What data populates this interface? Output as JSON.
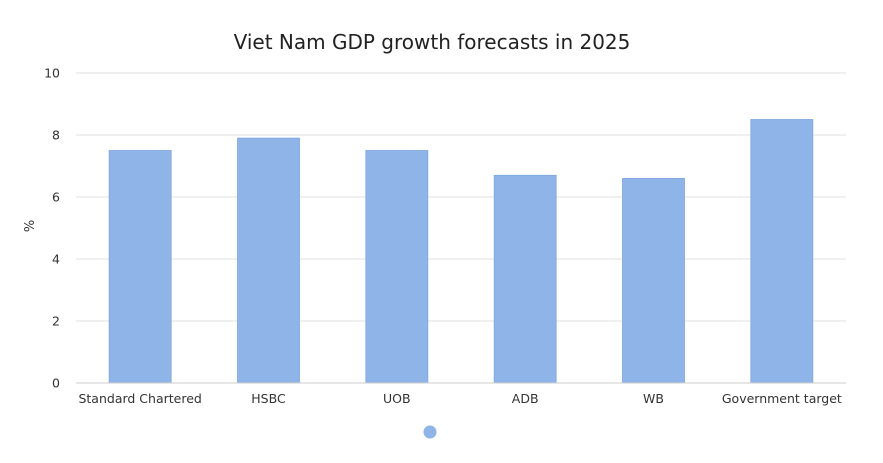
{
  "chart_data": {
    "type": "bar",
    "title": "Viet Nam GDP growth forecasts in 2025",
    "xlabel": "",
    "ylabel": "%",
    "ylim": [
      0,
      10
    ],
    "yticks": [
      "0",
      "2",
      "4",
      "6",
      "8",
      "10"
    ],
    "categories": [
      "Standard Chartered",
      "HSBC",
      "UOB",
      "ADB",
      "WB",
      "Government target"
    ],
    "values": [
      7.5,
      7.9,
      7.5,
      6.7,
      6.6,
      8.5
    ],
    "grid": true,
    "legend": "bottom-center",
    "colors": {
      "bar": "#8fb4e8",
      "bar_stroke": "#7fa6df",
      "grid": "#e2e2e2",
      "axis": "#cccccc",
      "legend_marker": "#8fb4e8"
    }
  }
}
